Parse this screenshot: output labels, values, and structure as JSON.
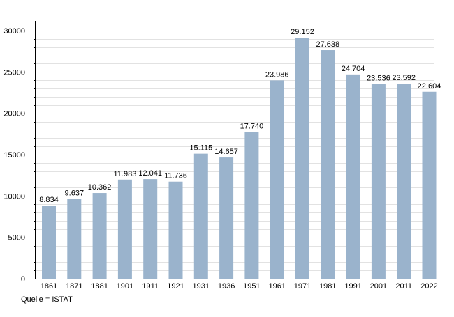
{
  "chart_data": {
    "type": "bar",
    "categories": [
      "1861",
      "1871",
      "1881",
      "1901",
      "1911",
      "1921",
      "1931",
      "1936",
      "1951",
      "1961",
      "1971",
      "1981",
      "1991",
      "2001",
      "2011",
      "2022"
    ],
    "values": [
      8834,
      9637,
      10362,
      11983,
      12041,
      11736,
      15115,
      14657,
      17740,
      23986,
      29152,
      27638,
      24704,
      23536,
      23592,
      22604
    ],
    "value_labels": [
      "8.834",
      "9.637",
      "10.362",
      "11.983",
      "12.041",
      "11.736",
      "15.115",
      "14.657",
      "17.740",
      "23.986",
      "29.152",
      "27.638",
      "24.704",
      "23.536",
      "23.592",
      "22.604"
    ],
    "ylim": [
      0,
      30000
    ],
    "yticks": [
      0,
      5000,
      10000,
      15000,
      20000,
      25000,
      30000
    ],
    "ytick_labels": [
      "0",
      "5000",
      "10000",
      "15000",
      "20000",
      "25000",
      "30000"
    ],
    "minor_step": 1000,
    "grid": true,
    "legend": "none",
    "bar_color": "#9ab3cc",
    "grid_color": "#cccccc",
    "title": "",
    "xlabel": "",
    "ylabel": ""
  },
  "source_note": "Quelle = ISTAT"
}
